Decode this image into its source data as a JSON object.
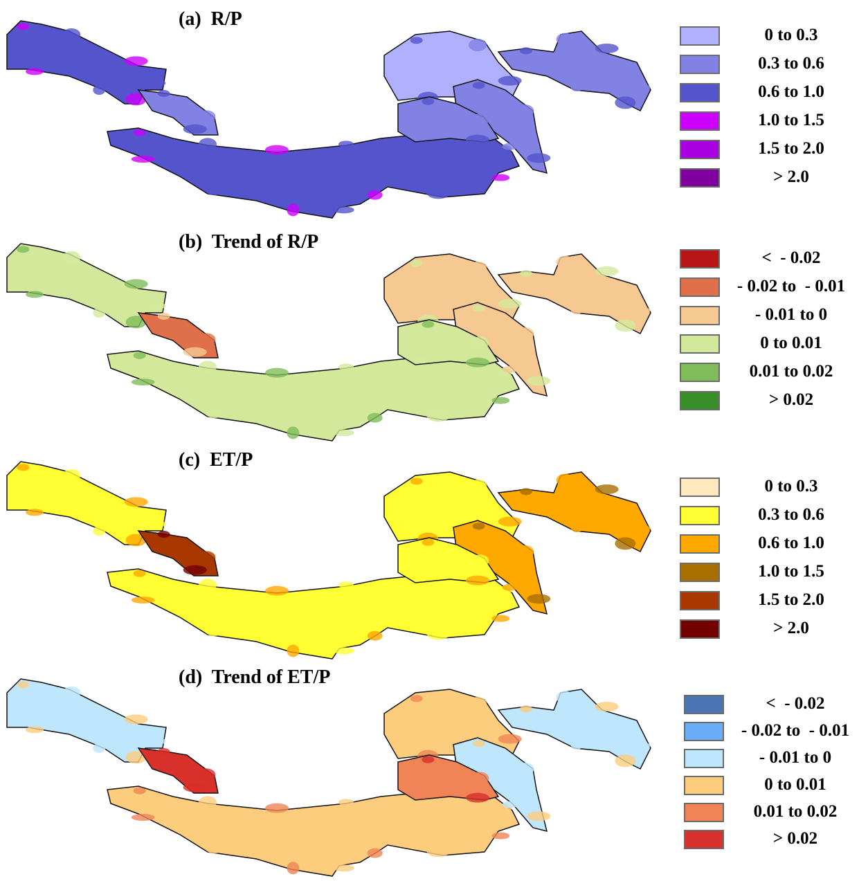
{
  "panels": [
    {
      "title": "(a)  R/P",
      "legend": [
        {
          "label": "0 to 0.3",
          "color": "#b0b0ff"
        },
        {
          "label": "0.3 to 0.6",
          "color": "#8282e4"
        },
        {
          "label": "0.6 to 1.0",
          "color": "#5454cc"
        },
        {
          "label": "1.0 to 1.5",
          "color": "#cc00ff"
        },
        {
          "label": "1.5 to 2.0",
          "color": "#a800e0"
        },
        {
          "label": "> 2.0",
          "color": "#80009f"
        }
      ],
      "basin_classes": [
        2,
        1,
        2,
        0,
        1,
        1,
        1
      ]
    },
    {
      "title": "(b)  Trend of R/P",
      "legend": [
        {
          "label": "<  - 0.02",
          "color": "#b81616"
        },
        {
          "label": "- 0.02 to  - 0.01",
          "color": "#e0704a"
        },
        {
          "label": "- 0.01 to 0",
          "color": "#f6c992"
        },
        {
          "label": "0 to 0.01",
          "color": "#d4e89c"
        },
        {
          "label": "0.01 to 0.02",
          "color": "#80bd5a"
        },
        {
          "label": "> 0.02",
          "color": "#3a9028"
        }
      ],
      "basin_classes": [
        3,
        1,
        3,
        2,
        2,
        2,
        3
      ]
    },
    {
      "title": "(c)  ET/P",
      "legend": [
        {
          "label": "0 to 0.3",
          "color": "#ffe8be"
        },
        {
          "label": "0.3 to 0.6",
          "color": "#ffff33"
        },
        {
          "label": "0.6 to 1.0",
          "color": "#ffa800"
        },
        {
          "label": "1.0 to 1.5",
          "color": "#a86e00"
        },
        {
          "label": "1.5 to 2.0",
          "color": "#a83800"
        },
        {
          "label": "> 2.0",
          "color": "#730000"
        }
      ],
      "basin_classes": [
        1,
        4,
        1,
        1,
        2,
        2,
        1
      ]
    },
    {
      "title": "(d)  Trend of ET/P",
      "legend": [
        {
          "label": "<  - 0.02",
          "color": "#4a74b4"
        },
        {
          "label": "- 0.02 to  - 0.01",
          "color": "#6aaef8"
        },
        {
          "label": "- 0.01 to 0",
          "color": "#bee6fc"
        },
        {
          "label": "0 to 0.01",
          "color": "#fdcd7e"
        },
        {
          "label": "0.01 to 0.02",
          "color": "#f08456"
        },
        {
          "label": "> 0.02",
          "color": "#d8302a"
        }
      ],
      "basin_classes": [
        2,
        5,
        3,
        3,
        2,
        2,
        4
      ]
    }
  ]
}
